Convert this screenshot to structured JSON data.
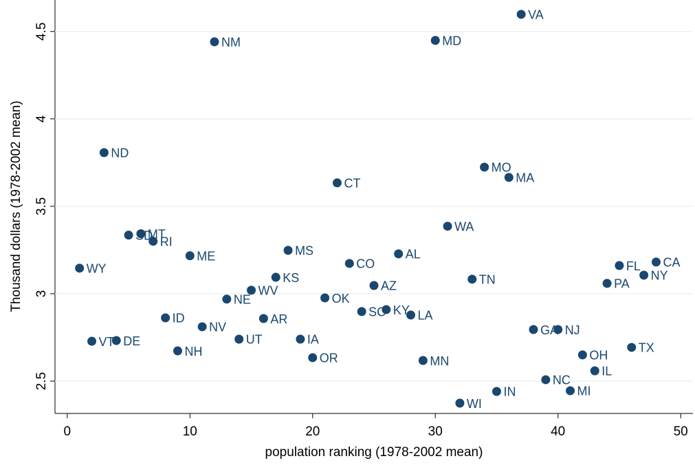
{
  "chart_data": {
    "type": "scatter",
    "x_label": "population ranking (1978-2002 mean)",
    "y_label": "Thousand dollars (1978-2002 mean)",
    "xlim": [
      -1,
      51
    ],
    "ylim": [
      2.315,
      4.68
    ],
    "xticks": [
      0,
      10,
      20,
      30,
      40,
      50
    ],
    "yticks": [
      2.5,
      3,
      3.5,
      4,
      4.5
    ],
    "grid": true,
    "series": [
      {
        "color": "#1a476f",
        "x": [
          1,
          2,
          3,
          4,
          5,
          6,
          7,
          8,
          9,
          10,
          11,
          12,
          13,
          14,
          15,
          16,
          17,
          18,
          19,
          20,
          21,
          22,
          23,
          24,
          25,
          26,
          27,
          28,
          29,
          30,
          31,
          32,
          33,
          34,
          35,
          36,
          37,
          38,
          39,
          40,
          41,
          42,
          43,
          44,
          45,
          46,
          47,
          48
        ],
        "values": [
          3.146,
          2.728,
          3.807,
          2.732,
          3.335,
          3.343,
          3.3,
          2.862,
          2.673,
          3.217,
          2.811,
          4.441,
          2.969,
          2.74,
          3.02,
          2.858,
          3.094,
          3.248,
          2.74,
          2.634,
          2.976,
          3.634,
          3.173,
          2.898,
          3.047,
          2.909,
          3.228,
          2.878,
          2.618,
          4.449,
          3.386,
          2.374,
          3.083,
          3.724,
          2.441,
          3.665,
          4.598,
          2.795,
          2.508,
          2.795,
          2.445,
          2.65,
          2.559,
          3.059,
          3.161,
          2.693,
          3.106,
          3.181
        ],
        "point_labels": [
          "WY",
          "VT",
          "ND",
          "DE",
          "SD",
          "MT",
          "RI",
          "ID",
          "NH",
          "ME",
          "NV",
          "NM",
          "NE",
          "UT",
          "WV",
          "AR",
          "KS",
          "MS",
          "IA",
          "OR",
          "OK",
          "CT",
          "CO",
          "SC",
          "AZ",
          "KY",
          "AL",
          "LA",
          "MN",
          "MD",
          "WA",
          "WI",
          "TN",
          "MO",
          "IN",
          "MA",
          "VA",
          "GA",
          "NC",
          "NJ",
          "MI",
          "OH",
          "IL",
          "PA",
          "FL",
          "TX",
          "NY",
          "CA"
        ]
      }
    ]
  }
}
